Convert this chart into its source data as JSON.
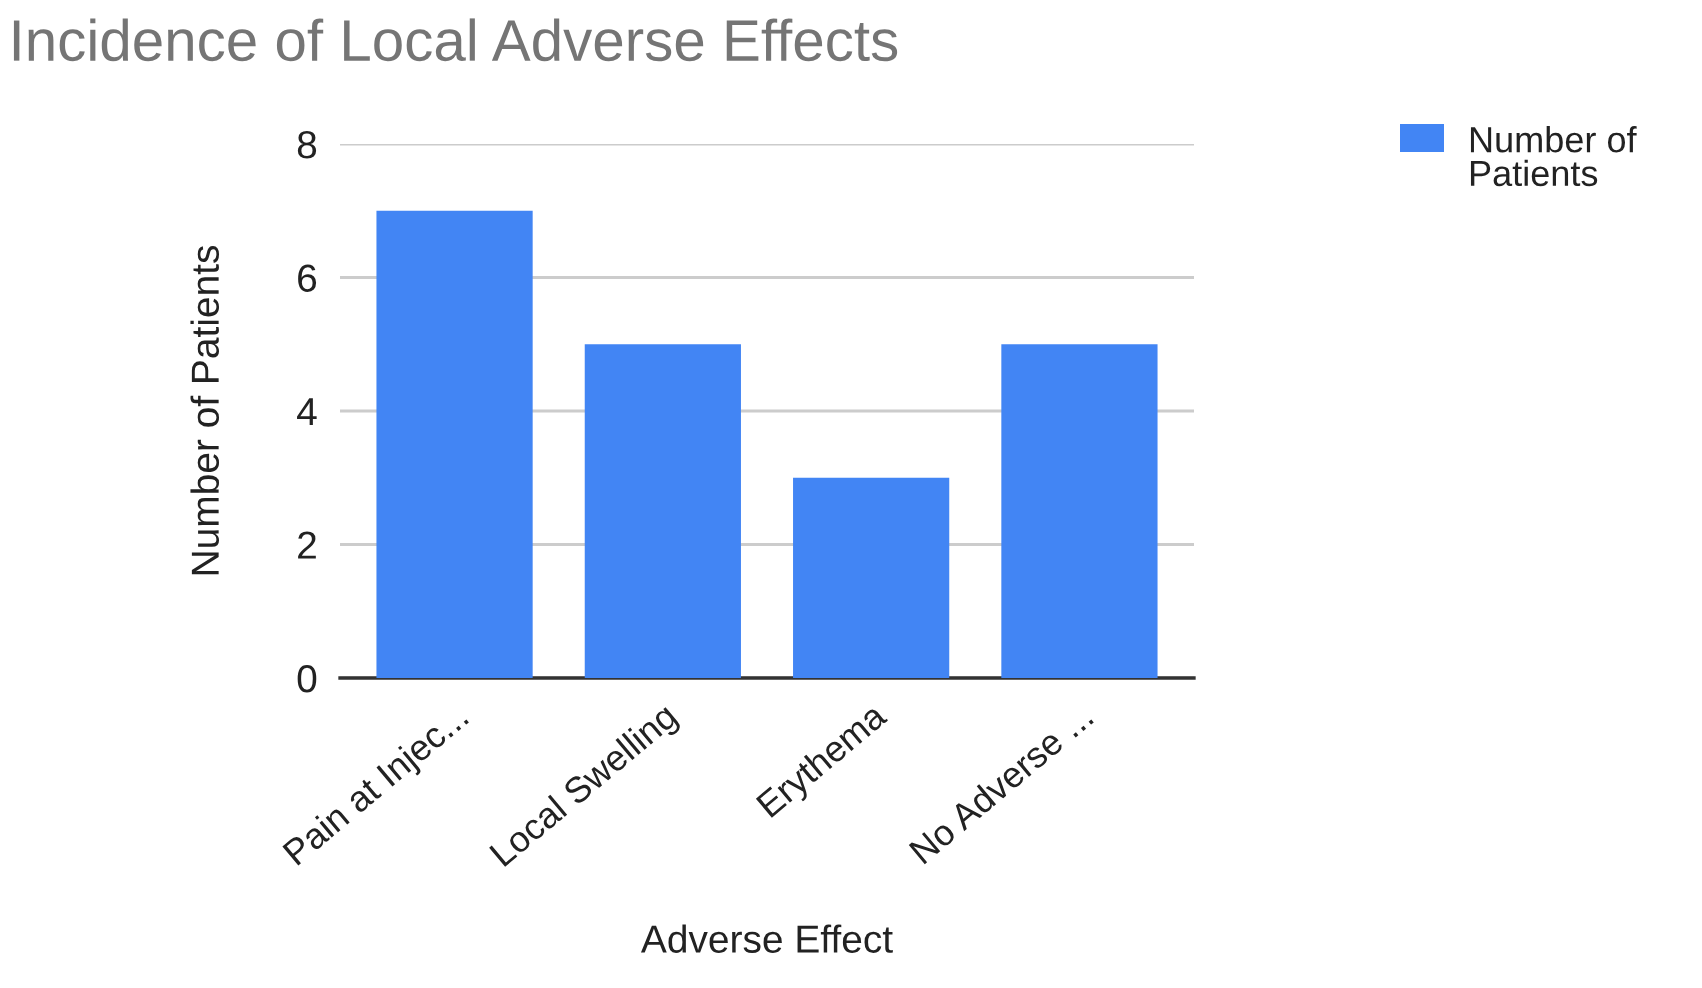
{
  "chart_data": {
    "type": "bar",
    "title": "Incidence of Local Adverse Effects",
    "xlabel": "Adverse Effect",
    "ylabel": "Number of Patients",
    "categories": [
      "Pain at Injec...",
      "Local Swelling",
      "Erythema",
      "No Adverse ..."
    ],
    "series": [
      {
        "name": "Number of Patients",
        "color": "#4285f4",
        "values": [
          7,
          5,
          3,
          5
        ]
      }
    ],
    "ylim": [
      0,
      8
    ],
    "yticks": [
      0,
      2,
      4,
      6,
      8
    ],
    "grid": "y",
    "legend": "top right"
  }
}
